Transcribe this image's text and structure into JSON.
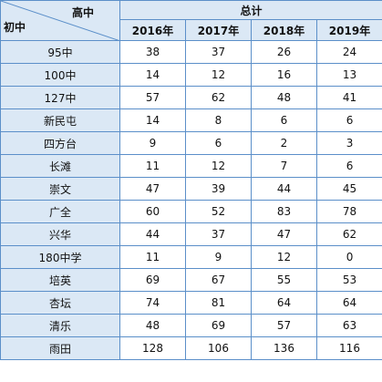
{
  "header": {
    "corner_top": "高中",
    "corner_bottom": "初中",
    "total": "总计",
    "years": [
      "2016年",
      "2017年",
      "2018年",
      "2019年"
    ]
  },
  "rows": [
    {
      "name": "95中",
      "values": [
        "38",
        "37",
        "26",
        "24"
      ]
    },
    {
      "name": "100中",
      "values": [
        "14",
        "12",
        "16",
        "13"
      ]
    },
    {
      "name": "127中",
      "values": [
        "57",
        "62",
        "48",
        "41"
      ]
    },
    {
      "name": "新民屯",
      "values": [
        "14",
        "8",
        "6",
        "6"
      ]
    },
    {
      "name": "四方台",
      "values": [
        "9",
        "6",
        "2",
        "3"
      ]
    },
    {
      "name": "长滩",
      "values": [
        "11",
        "12",
        "7",
        "6"
      ]
    },
    {
      "name": "崇文",
      "values": [
        "47",
        "39",
        "44",
        "45"
      ]
    },
    {
      "name": "广全",
      "values": [
        "60",
        "52",
        "83",
        "78"
      ]
    },
    {
      "name": "兴华",
      "values": [
        "44",
        "37",
        "47",
        "62"
      ]
    },
    {
      "name": "180中学",
      "values": [
        "11",
        "9",
        "12",
        "0"
      ]
    },
    {
      "name": "培英",
      "values": [
        "69",
        "67",
        "55",
        "53"
      ]
    },
    {
      "name": "杏坛",
      "values": [
        "74",
        "81",
        "64",
        "64"
      ]
    },
    {
      "name": "清乐",
      "values": [
        "48",
        "69",
        "57",
        "63"
      ]
    },
    {
      "name": "雨田",
      "values": [
        "128",
        "106",
        "136",
        "116"
      ]
    }
  ]
}
